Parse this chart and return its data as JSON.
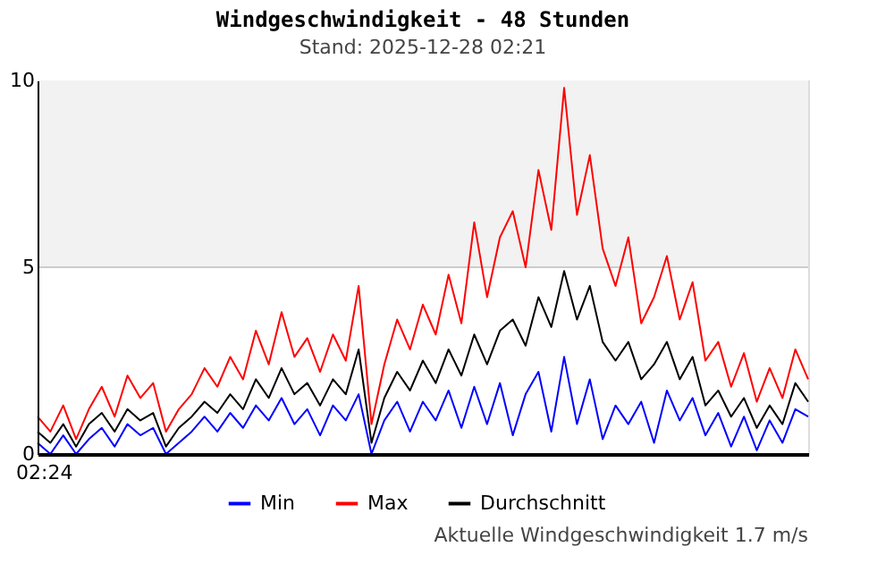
{
  "chart_data": {
    "type": "line",
    "title": "Windgeschwindigkeit - 48 Stunden",
    "subtitle": "Stand: 2025-12-28 02:21",
    "categories": [
      null,
      null,
      null,
      null,
      null,
      null,
      null,
      null,
      null,
      null,
      null,
      null,
      null,
      null,
      null,
      null,
      null,
      null,
      null,
      null,
      null,
      null,
      null,
      null,
      null,
      null,
      null,
      null,
      null,
      null,
      null,
      null,
      null,
      null,
      null,
      null,
      null,
      null,
      null,
      null,
      null,
      null,
      null,
      null,
      null,
      null,
      null,
      null,
      null,
      null,
      null,
      null,
      null,
      null,
      null,
      null,
      null,
      null,
      null,
      null,
      null
    ],
    "series": [
      {
        "name": "Min",
        "color": "#0000ff",
        "values": [
          0.3,
          0.0,
          0.5,
          0.0,
          0.4,
          0.7,
          0.2,
          0.8,
          0.5,
          0.7,
          0.0,
          0.3,
          0.6,
          1.0,
          0.6,
          1.1,
          0.7,
          1.3,
          0.9,
          1.5,
          0.8,
          1.2,
          0.5,
          1.3,
          0.9,
          1.6,
          0.0,
          0.9,
          1.4,
          0.6,
          1.4,
          0.9,
          1.7,
          0.7,
          1.8,
          0.8,
          1.9,
          0.5,
          1.6,
          2.2,
          0.6,
          2.6,
          0.8,
          2.0,
          0.4,
          1.3,
          0.8,
          1.4,
          0.3,
          1.7,
          0.9,
          1.5,
          0.5,
          1.1,
          0.2,
          1.0,
          0.1,
          0.9,
          0.3,
          1.2,
          1.0
        ]
      },
      {
        "name": "Max",
        "color": "#ff0000",
        "values": [
          1.0,
          0.6,
          1.3,
          0.4,
          1.2,
          1.8,
          1.0,
          2.1,
          1.5,
          1.9,
          0.6,
          1.2,
          1.6,
          2.3,
          1.8,
          2.6,
          2.0,
          3.3,
          2.4,
          3.8,
          2.6,
          3.1,
          2.2,
          3.2,
          2.5,
          4.5,
          0.8,
          2.4,
          3.6,
          2.8,
          4.0,
          3.2,
          4.8,
          3.5,
          6.2,
          4.2,
          5.8,
          6.5,
          5.0,
          7.6,
          6.0,
          9.8,
          6.4,
          8.0,
          5.5,
          4.5,
          5.8,
          3.5,
          4.2,
          5.3,
          3.6,
          4.6,
          2.5,
          3.0,
          1.8,
          2.7,
          1.4,
          2.3,
          1.5,
          2.8,
          2.0
        ]
      },
      {
        "name": "Durchschnitt",
        "color": "#000000",
        "values": [
          0.6,
          0.3,
          0.8,
          0.2,
          0.8,
          1.1,
          0.6,
          1.2,
          0.9,
          1.1,
          0.2,
          0.7,
          1.0,
          1.4,
          1.1,
          1.6,
          1.2,
          2.0,
          1.5,
          2.3,
          1.6,
          1.9,
          1.3,
          2.0,
          1.6,
          2.8,
          0.3,
          1.5,
          2.2,
          1.7,
          2.5,
          1.9,
          2.8,
          2.1,
          3.2,
          2.4,
          3.3,
          3.6,
          2.9,
          4.2,
          3.4,
          4.9,
          3.6,
          4.5,
          3.0,
          2.5,
          3.0,
          2.0,
          2.4,
          3.0,
          2.0,
          2.6,
          1.3,
          1.7,
          1.0,
          1.5,
          0.7,
          1.3,
          0.8,
          1.9,
          1.4
        ]
      }
    ],
    "ylim": [
      0,
      10
    ],
    "yticks": [
      0,
      5,
      10
    ],
    "bands": [
      {
        "axis": "y",
        "from": 5,
        "to": 10,
        "color": "#f2f2f2"
      }
    ],
    "legend": "bottom",
    "marker": "none",
    "line_style": "solid",
    "annotations": [
      "02:24",
      "Aktuelle Windgeschwindigkeit 1.7 m/s"
    ]
  }
}
